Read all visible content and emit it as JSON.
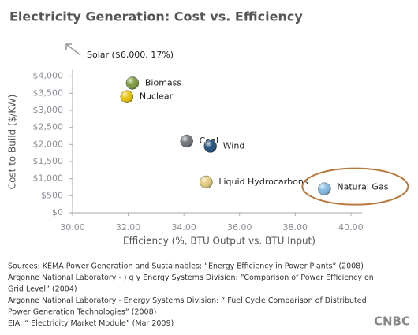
{
  "chart_data": {
    "type": "scatter",
    "title": "Electricity Generation: Cost vs. Efficiency",
    "x_label": "Efficiency (%, BTU Output vs. BTU Input)",
    "y_label": "Cost to Build ($/KW)",
    "annotation": "Solar ($6,000, 17%)",
    "points": [
      {
        "name": "Biomass",
        "x": 32.15,
        "y": 3800,
        "color": "#7d9c3c"
      },
      {
        "name": "Nuclear",
        "x": 31.95,
        "y": 3400,
        "color": "#e6c200"
      },
      {
        "name": "Coal",
        "x": 34.1,
        "y": 2100,
        "color": "#6e7479"
      },
      {
        "name": "Wind",
        "x": 34.95,
        "y": 1950,
        "color": "#1f4f7d"
      },
      {
        "name": "Liquid Hydrocarbons",
        "x": 34.8,
        "y": 900,
        "color": "#e3cc7c"
      },
      {
        "name": "Natural Gas",
        "x": 39.05,
        "y": 700,
        "color": "#80b9e0",
        "highlight": true
      }
    ],
    "xlim": [
      30,
      40.4
    ],
    "ylim": [
      0,
      4200
    ],
    "xticks": [
      {
        "value": 30,
        "label": "30.00"
      },
      {
        "value": 32,
        "label": "32.00"
      },
      {
        "value": 34,
        "label": "34.00"
      },
      {
        "value": 36,
        "label": "36.00"
      },
      {
        "value": 38,
        "label": "38.00"
      },
      {
        "value": 40,
        "label": "40.00"
      }
    ],
    "yticks": [
      {
        "value": 0,
        "label": "$0"
      },
      {
        "value": 500,
        "label": "$500"
      },
      {
        "value": 1000,
        "label": "$1,000"
      },
      {
        "value": 1500,
        "label": "$1,500"
      },
      {
        "value": 2000,
        "label": "$2,000"
      },
      {
        "value": 2500,
        "label": "$2,500"
      },
      {
        "value": 3000,
        "label": "$3,000"
      },
      {
        "value": 3500,
        "label": "$3,500"
      },
      {
        "value": 4000,
        "label": "$4,000"
      }
    ],
    "grid": false,
    "sources": [
      "Sources: KEMA Power Generation and Sustainables: “Energy Efficiency in Power Plants” (2008)",
      "Argonne National Laboratory - ) g y Energy Systems Division: “Comparison of Power Efficiency on",
      "Grid Level” (2004)",
      "Argonne National Laboratory - Energy Systems Division: “ Fuel Cycle Comparison of Distributed",
      "Power Generation Technologies” (2008)",
      "EIA: “ Electricity Market Module” (Mar 2009)"
    ],
    "logo": "CNBC"
  }
}
